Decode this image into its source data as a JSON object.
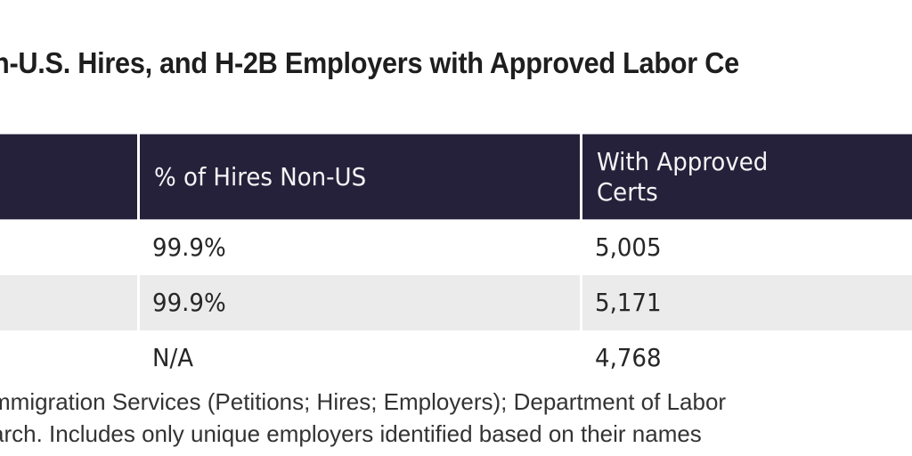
{
  "title": "n-U.S. Hires, and H-2B Employers with Approved Labor Ce",
  "table": {
    "headers": [
      "",
      "% of Hires Non-US",
      "With Approved\nCerts"
    ],
    "header_lines": {
      "col1": "% of Hires Non-US",
      "col2_line1": "With Approved",
      "col2_line2": "Certs"
    },
    "rows": [
      {
        "label": "",
        "pct_non_us": "99.9%",
        "approved_certs": "5,005"
      },
      {
        "label": "",
        "pct_non_us": "99.9%",
        "approved_certs": "5,171"
      },
      {
        "label": "",
        "pct_non_us": "N/A",
        "approved_certs": "4,768"
      }
    ]
  },
  "footer": {
    "line1": "mmigration Services (Petitions; Hires; Employers); Department of Labor",
    "line2": "arch. Includes only unique employers identified based on their names"
  },
  "colors": {
    "header_bg": "#26213a",
    "header_text": "#f4f4f6",
    "alt_row_bg": "#ebebeb",
    "body_text": "#262626"
  }
}
